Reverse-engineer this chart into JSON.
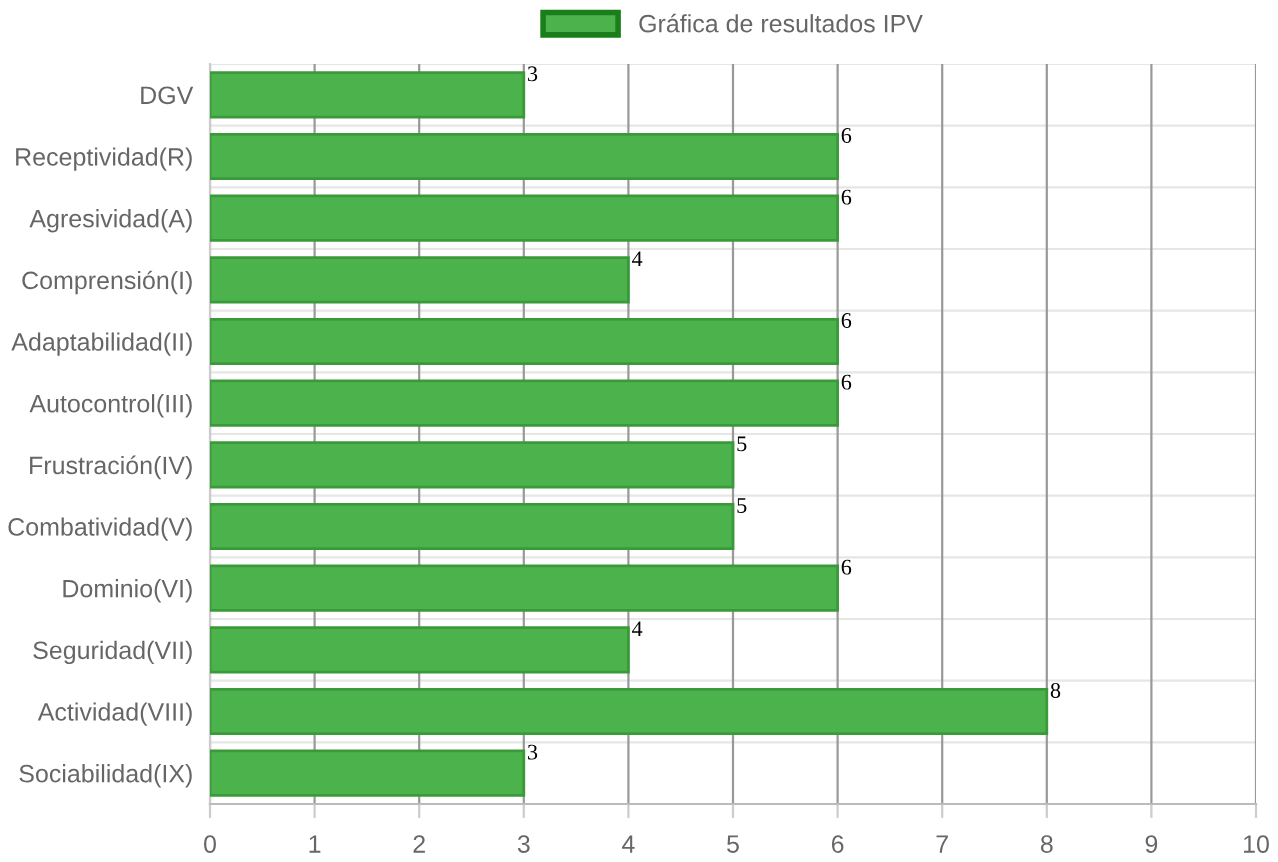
{
  "chart_data": {
    "type": "bar",
    "orientation": "horizontal",
    "categories": [
      "DGV",
      "Receptividad(R)",
      "Agresividad(A)",
      "Comprensión(I)",
      "Adaptabilidad(II)",
      "Autocontrol(III)",
      "Frustración(IV)",
      "Combatividad(V)",
      "Dominio(VI)",
      "Seguridad(VII)",
      "Actividad(VIII)",
      "Sociabilidad(IX)"
    ],
    "series": [
      {
        "name": "Gráfica de resultados IPV",
        "color": "#4cb34c",
        "values": [
          3,
          6,
          6,
          4,
          6,
          6,
          5,
          5,
          6,
          4,
          8,
          3
        ]
      }
    ],
    "xlim": [
      0,
      10
    ],
    "xticks": [
      0,
      1,
      2,
      3,
      4,
      5,
      6,
      7,
      8,
      9,
      10
    ],
    "grid": true,
    "legend": "top",
    "data_labels": true
  }
}
